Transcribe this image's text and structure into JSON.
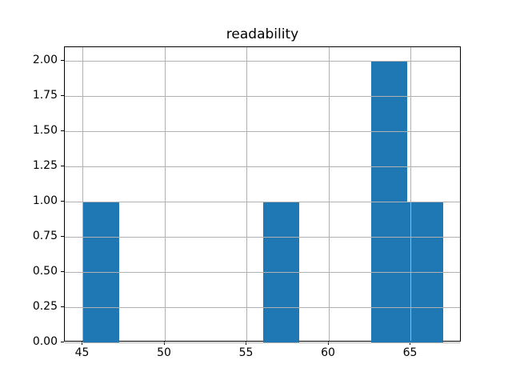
{
  "chart_data": {
    "type": "bar",
    "subtype": "histogram",
    "title": "readability",
    "xlabel": "",
    "ylabel": "",
    "xlim": [
      43.9,
      68.1
    ],
    "ylim": [
      0,
      2.1
    ],
    "xticks": [
      45,
      50,
      55,
      60,
      65
    ],
    "xtick_labels": [
      "45",
      "50",
      "55",
      "60",
      "65"
    ],
    "yticks": [
      0,
      0.25,
      0.5,
      0.75,
      1.0,
      1.25,
      1.5,
      1.75,
      2.0
    ],
    "ytick_labels": [
      "0.00",
      "0.25",
      "0.50",
      "0.75",
      "1.00",
      "1.25",
      "1.50",
      "1.75",
      "2.00"
    ],
    "grid": true,
    "grid_over_bars": true,
    "legend": false,
    "bar_color": "#1f77b4",
    "grid_color": "#b0b0b0",
    "spine_color": "#000000",
    "background_color": "#ffffff",
    "bin_width": 2.2,
    "bin_range": [
      45.0,
      67.0
    ],
    "bins": [
      {
        "x0": 45.0,
        "x1": 47.2,
        "count": 1
      },
      {
        "x0": 47.2,
        "x1": 49.4,
        "count": 0
      },
      {
        "x0": 49.4,
        "x1": 51.6,
        "count": 0
      },
      {
        "x0": 51.6,
        "x1": 53.8,
        "count": 0
      },
      {
        "x0": 53.8,
        "x1": 56.0,
        "count": 0
      },
      {
        "x0": 56.0,
        "x1": 58.2,
        "count": 1
      },
      {
        "x0": 58.2,
        "x1": 60.4,
        "count": 0
      },
      {
        "x0": 60.4,
        "x1": 62.6,
        "count": 0
      },
      {
        "x0": 62.6,
        "x1": 64.8,
        "count": 2
      },
      {
        "x0": 64.8,
        "x1": 67.0,
        "count": 1
      }
    ]
  }
}
